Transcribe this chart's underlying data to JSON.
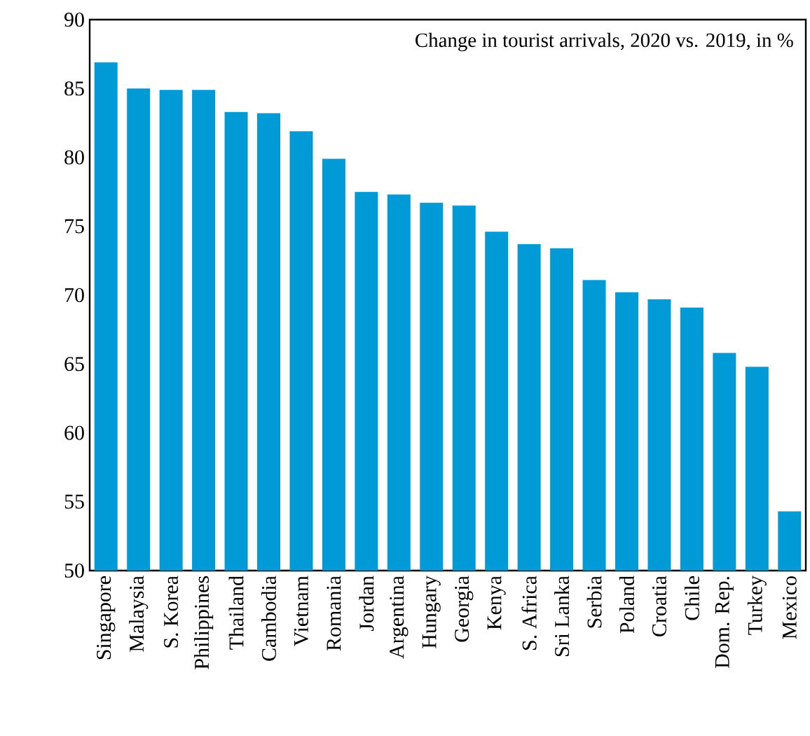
{
  "chart_data": {
    "type": "bar",
    "title": "Change in tourist arrivals, 2020 vs. 2019, in %",
    "categories": [
      "Singapore",
      "Malaysia",
      "S. Korea",
      "Philippines",
      "Thailand",
      "Cambodia",
      "Vietnam",
      "Romania",
      "Jordan",
      "Argentina",
      "Hungary",
      "Georgia",
      "Kenya",
      "S. Africa",
      "Sri Lanka",
      "Serbia",
      "Poland",
      "Croatia",
      "Chile",
      "Dom. Rep.",
      "Turkey",
      "Mexico"
    ],
    "values": [
      86.9,
      85.0,
      84.9,
      84.9,
      83.3,
      83.2,
      81.9,
      79.9,
      77.5,
      77.3,
      76.7,
      76.5,
      74.6,
      73.7,
      73.4,
      71.1,
      70.2,
      69.7,
      69.1,
      65.8,
      64.8,
      54.3
    ],
    "color": "#009bd7",
    "ylim": [
      50,
      90
    ],
    "yticks": [
      50,
      55,
      60,
      65,
      70,
      75,
      80,
      85,
      90
    ],
    "grid": false
  }
}
